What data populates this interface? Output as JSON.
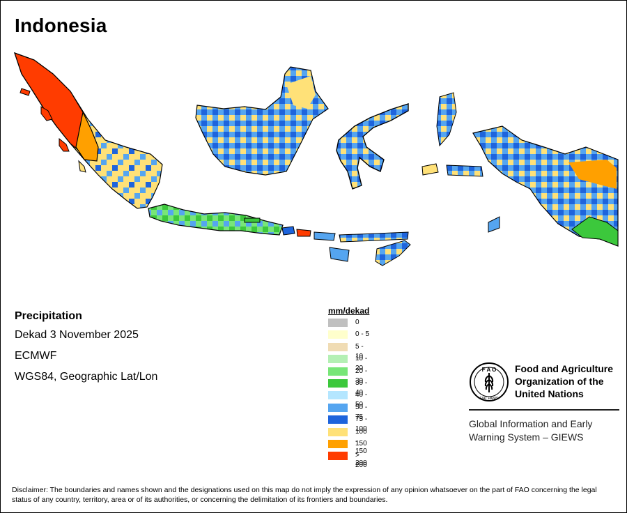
{
  "title": "Indonesia",
  "info": {
    "heading": "Precipitation",
    "period": "Dekad 3 November 2025",
    "model": "ECMWF",
    "projection": "WGS84, Geographic Lat/Lon"
  },
  "legend": {
    "title": "mm/dekad",
    "items": [
      {
        "label": "0",
        "color": "#c0c0c0"
      },
      {
        "label": "0 - 5",
        "color": "#ffffcc"
      },
      {
        "label": "5 - 10",
        "color": "#f0dcb4"
      },
      {
        "label": "10 - 20",
        "color": "#b4f0b4"
      },
      {
        "label": "20 - 30",
        "color": "#78e678"
      },
      {
        "label": "30 - 40",
        "color": "#3cc83c"
      },
      {
        "label": "40 - 50",
        "color": "#b4e6ff"
      },
      {
        "label": "50 - 75",
        "color": "#55a5f0"
      },
      {
        "label": "75 - 100",
        "color": "#1e64dc"
      },
      {
        "label": "100 - 150",
        "color": "#ffe178"
      },
      {
        "label": "150 - 200",
        "color": "#ffa000"
      },
      {
        "label": "> 200",
        "color": "#ff3c00"
      }
    ]
  },
  "logo": {
    "org_lines": [
      "Food and Agriculture",
      "Organization of the",
      "United Nations"
    ],
    "emblem_text": "F A O",
    "emblem_motto": "FIAT PANIS",
    "system_lines": [
      "Global Information and Early",
      "Warning System – GIEWS"
    ]
  },
  "disclaimer": "Disclaimer: The boundaries and names shown and the designations used on this map do not imply the expression of any opinion whatsoever on the part of FAO concerning the legal status of any country, territory, area or of its authorities, or concerning the delimitation of its frontiers and boundaries."
}
